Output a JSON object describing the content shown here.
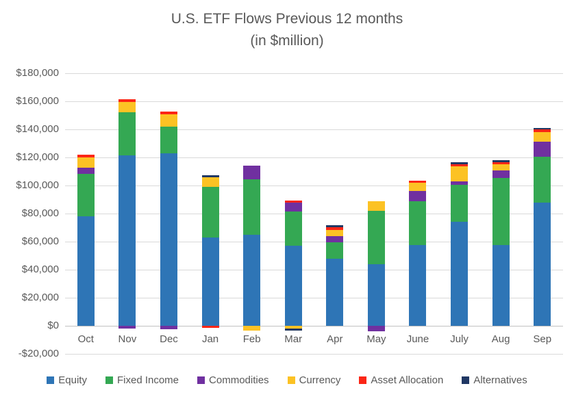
{
  "chart_data": {
    "type": "bar",
    "stacked": true,
    "title": "U.S. ETF Flows Previous 12 months",
    "subtitle": "(in $million)",
    "grid": true,
    "legend_position": "bottom",
    "y_axis": {
      "min": -20000,
      "max": 180000,
      "step": 20000
    },
    "y_ticks": [
      {
        "value": 180000,
        "label": "$180,000"
      },
      {
        "value": 160000,
        "label": "$160,000"
      },
      {
        "value": 140000,
        "label": "$140,000"
      },
      {
        "value": 120000,
        "label": "$120,000"
      },
      {
        "value": 100000,
        "label": "$100,000"
      },
      {
        "value": 80000,
        "label": "$80,000"
      },
      {
        "value": 60000,
        "label": "$60,000"
      },
      {
        "value": 40000,
        "label": "$40,000"
      },
      {
        "value": 20000,
        "label": "$20,000"
      },
      {
        "value": 0,
        "label": "$0"
      },
      {
        "value": -20000,
        "label": "-$20,000"
      }
    ],
    "categories": [
      "Oct",
      "Nov",
      "Dec",
      "Jan",
      "Feb",
      "Mar",
      "Apr",
      "May",
      "June",
      "July",
      "Aug",
      "Sep"
    ],
    "series": [
      {
        "name": "Equity",
        "color": "#2e75b6",
        "values": [
          78000,
          121500,
          123000,
          63000,
          65000,
          57000,
          48000,
          44000,
          57500,
          74000,
          57500,
          88000
        ]
      },
      {
        "name": "Fixed Income",
        "color": "#34a853",
        "values": [
          30500,
          30500,
          19000,
          36000,
          39500,
          24500,
          11500,
          38000,
          31500,
          26500,
          48000,
          32500
        ]
      },
      {
        "name": "Commodities",
        "color": "#7030a0",
        "values": [
          4000,
          -2000,
          -2500,
          0,
          9500,
          6500,
          4400,
          -4000,
          7000,
          2500,
          5000,
          10500
        ]
      },
      {
        "name": "Currency",
        "color": "#fcc224",
        "values": [
          7500,
          7500,
          8500,
          7000,
          -3500,
          -2000,
          4600,
          7000,
          6000,
          10500,
          4500,
          7000
        ]
      },
      {
        "name": "Asset Allocation",
        "color": "#fb2616",
        "values": [
          2000,
          2000,
          2000,
          -1500,
          0,
          1300,
          1600,
          0,
          1300,
          1500,
          1500,
          2000
        ]
      },
      {
        "name": "Alternatives",
        "color": "#203864",
        "values": [
          0,
          0,
          0,
          1500,
          0,
          -1500,
          1600,
          0,
          0,
          1500,
          1500,
          1000
        ]
      }
    ]
  }
}
